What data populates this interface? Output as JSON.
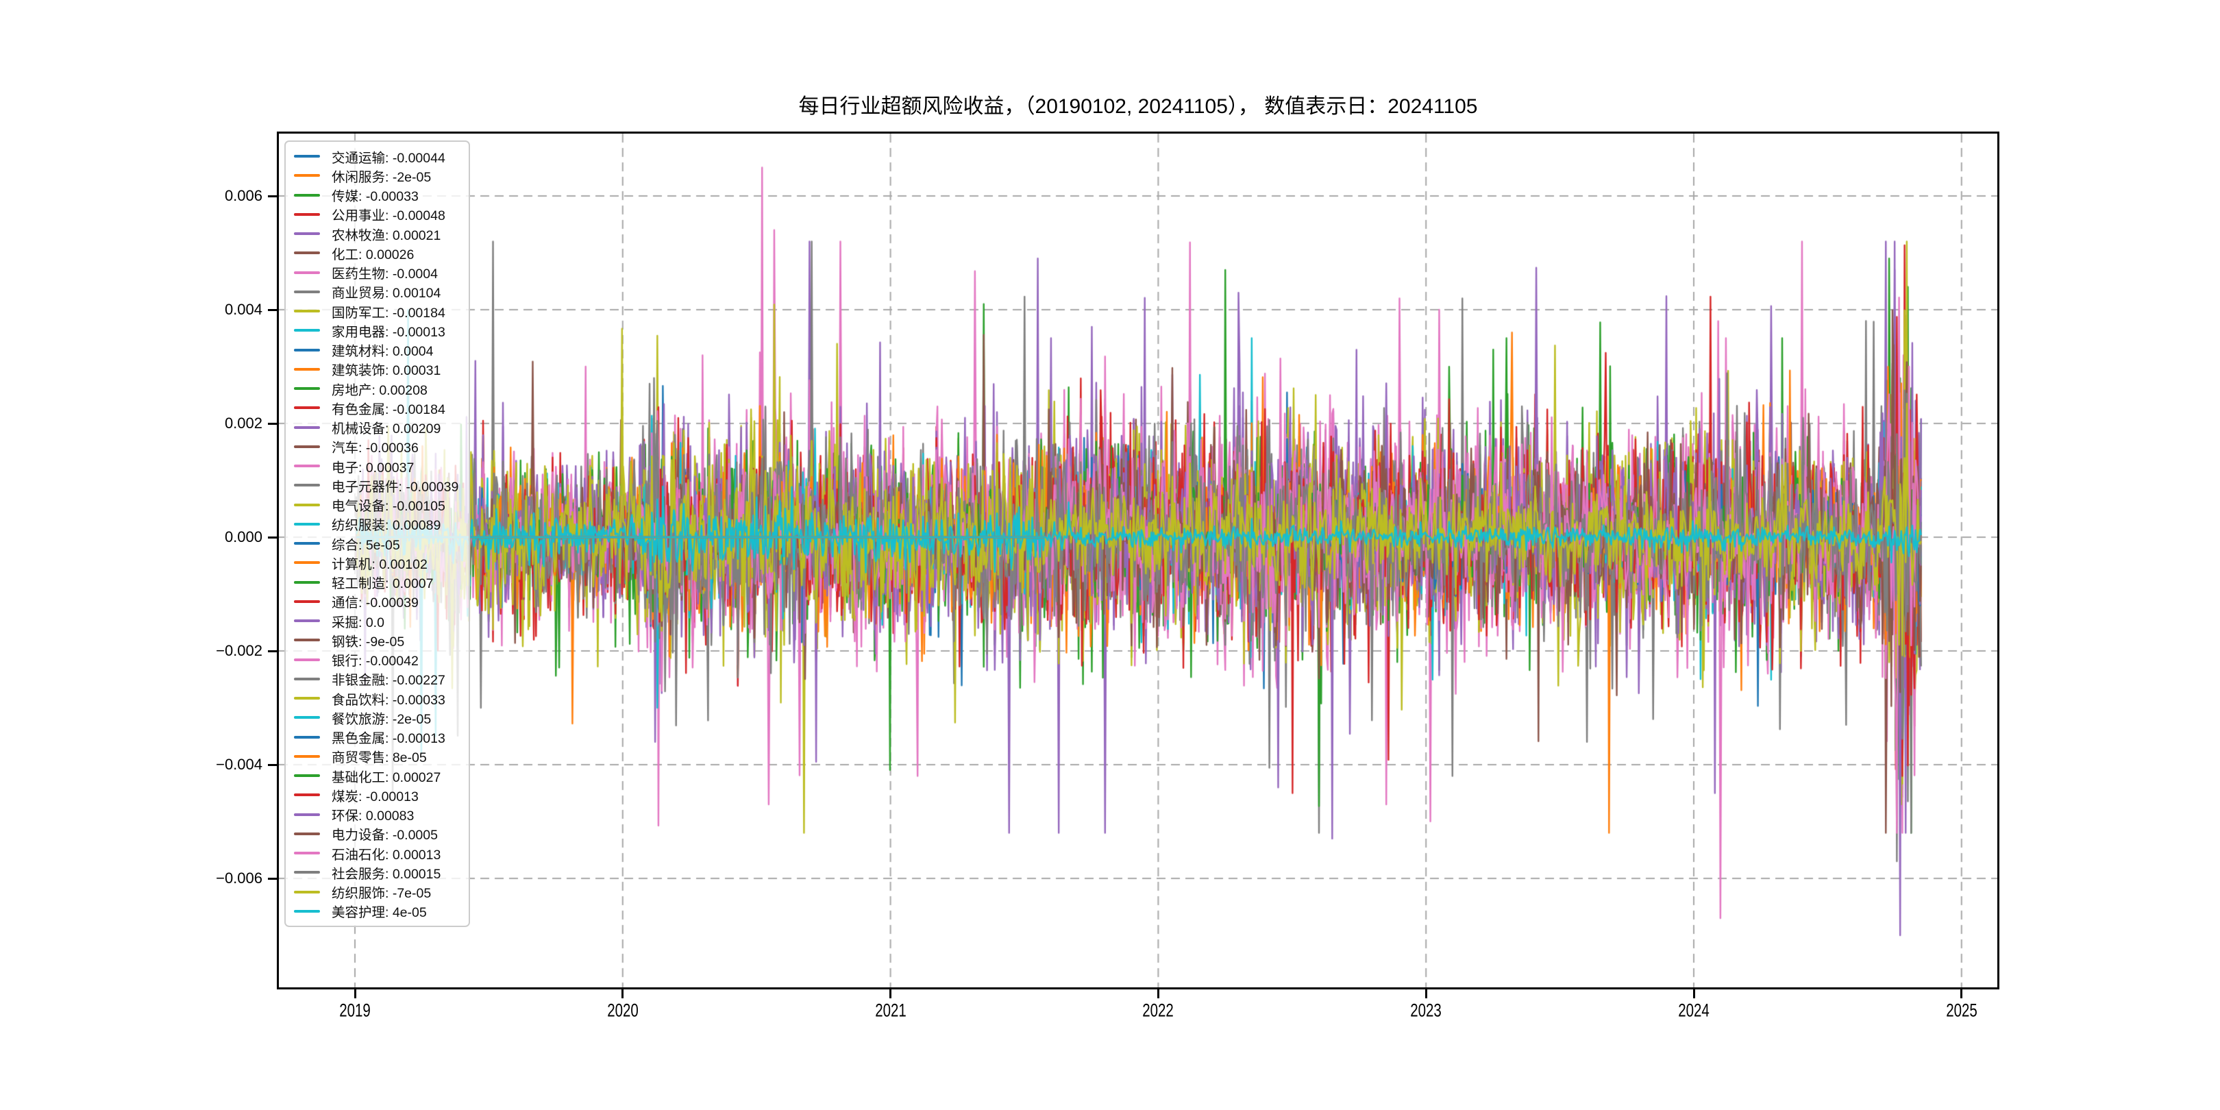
{
  "title": "每日行业超额风险收益，（20190102, 20241105），  数值表示日：20241105",
  "palette": [
    "#1f77b4",
    "#ff7f0e",
    "#2ca02c",
    "#d62728",
    "#9467bd",
    "#8c564b",
    "#e377c2",
    "#7f7f7f",
    "#bcbd22",
    "#17becf"
  ],
  "colors": {
    "grid": "#a8a8a8",
    "spine": "#000000",
    "legend_border": "#cccccc",
    "background": "#ffffff"
  },
  "chart_data": {
    "type": "line",
    "title": "每日行业超额风险收益，（20190102, 20241105），  数值表示日：20241105",
    "x_range_dates": [
      "20190102",
      "20241105"
    ],
    "value_date": "20241105",
    "x_ticks": [
      2019,
      2020,
      2021,
      2022,
      2023,
      2024,
      2025
    ],
    "x_tick_labels": [
      "2019",
      "2020",
      "2021",
      "2022",
      "2023",
      "2024",
      "2025"
    ],
    "y_ticks": [
      0.006,
      0.004,
      0.002,
      0.0,
      -0.002,
      -0.004,
      -0.006
    ],
    "y_tick_labels": [
      "0.006",
      "0.004",
      "0.002",
      "0.000",
      "−0.002",
      "−0.004",
      "−0.006"
    ],
    "ylim": [
      -0.0079,
      0.0071
    ],
    "grid": true,
    "legend_position": "upper left",
    "series": [
      {
        "name": "交通运输",
        "value": -0.00044,
        "value_label": "-0.00044",
        "color": "#1f77b4"
      },
      {
        "name": "休闲服务",
        "value": -2e-05,
        "value_label": "-2e-05",
        "color": "#ff7f0e"
      },
      {
        "name": "传媒",
        "value": -0.00033,
        "value_label": "-0.00033",
        "color": "#2ca02c"
      },
      {
        "name": "公用事业",
        "value": -0.00048,
        "value_label": "-0.00048",
        "color": "#d62728"
      },
      {
        "name": "农林牧渔",
        "value": 0.00021,
        "value_label": "0.00021",
        "color": "#9467bd"
      },
      {
        "name": "化工",
        "value": 0.00026,
        "value_label": "0.00026",
        "color": "#8c564b"
      },
      {
        "name": "医药生物",
        "value": -0.0004,
        "value_label": "-0.0004",
        "color": "#e377c2"
      },
      {
        "name": "商业贸易",
        "value": 0.00104,
        "value_label": "0.00104",
        "color": "#7f7f7f"
      },
      {
        "name": "国防军工",
        "value": -0.00184,
        "value_label": "-0.00184",
        "color": "#bcbd22"
      },
      {
        "name": "家用电器",
        "value": -0.00013,
        "value_label": "-0.00013",
        "color": "#17becf"
      },
      {
        "name": "建筑材料",
        "value": 0.0004,
        "value_label": "0.0004",
        "color": "#1f77b4"
      },
      {
        "name": "建筑装饰",
        "value": 0.00031,
        "value_label": "0.00031",
        "color": "#ff7f0e"
      },
      {
        "name": "房地产",
        "value": 0.00208,
        "value_label": "0.00208",
        "color": "#2ca02c"
      },
      {
        "name": "有色金属",
        "value": -0.00184,
        "value_label": "-0.00184",
        "color": "#d62728"
      },
      {
        "name": "机械设备",
        "value": 0.00209,
        "value_label": "0.00209",
        "color": "#9467bd"
      },
      {
        "name": "汽车",
        "value": -0.00036,
        "value_label": "-0.00036",
        "color": "#8c564b"
      },
      {
        "name": "电子",
        "value": 0.00037,
        "value_label": "0.00037",
        "color": "#e377c2"
      },
      {
        "name": "电子元器件",
        "value": -0.00039,
        "value_label": "-0.00039",
        "color": "#7f7f7f"
      },
      {
        "name": "电气设备",
        "value": -0.00105,
        "value_label": "-0.00105",
        "color": "#bcbd22"
      },
      {
        "name": "纺织服装",
        "value": 0.00089,
        "value_label": "0.00089",
        "color": "#17becf"
      },
      {
        "name": "综合",
        "value": 5e-05,
        "value_label": "5e-05",
        "color": "#1f77b4"
      },
      {
        "name": "计算机",
        "value": 0.00102,
        "value_label": "0.00102",
        "color": "#ff7f0e"
      },
      {
        "name": "轻工制造",
        "value": 0.0007,
        "value_label": "0.0007",
        "color": "#2ca02c"
      },
      {
        "name": "通信",
        "value": -0.00039,
        "value_label": "-0.00039",
        "color": "#d62728"
      },
      {
        "name": "采掘",
        "value": 0.0,
        "value_label": "0.0",
        "color": "#9467bd"
      },
      {
        "name": "钢铁",
        "value": -9e-05,
        "value_label": "-9e-05",
        "color": "#8c564b"
      },
      {
        "name": "银行",
        "value": -0.00042,
        "value_label": "-0.00042",
        "color": "#e377c2"
      },
      {
        "name": "非银金融",
        "value": -0.00227,
        "value_label": "-0.00227",
        "color": "#7f7f7f"
      },
      {
        "name": "食品饮料",
        "value": -0.00033,
        "value_label": "-0.00033",
        "color": "#bcbd22"
      },
      {
        "name": "餐饮旅游",
        "value": -2e-05,
        "value_label": "-2e-05",
        "color": "#17becf"
      },
      {
        "name": "黑色金属",
        "value": -0.00013,
        "value_label": "-0.00013",
        "color": "#1f77b4"
      },
      {
        "name": "商贸零售",
        "value": 8e-05,
        "value_label": "8e-05",
        "color": "#ff7f0e"
      },
      {
        "name": "基础化工",
        "value": 0.00027,
        "value_label": "0.00027",
        "color": "#2ca02c"
      },
      {
        "name": "煤炭",
        "value": -0.00013,
        "value_label": "-0.00013",
        "color": "#d62728"
      },
      {
        "name": "环保",
        "value": 0.00083,
        "value_label": "0.00083",
        "color": "#9467bd"
      },
      {
        "name": "电力设备",
        "value": -0.0005,
        "value_label": "-0.0005",
        "color": "#8c564b"
      },
      {
        "name": "石油石化",
        "value": 0.00013,
        "value_label": "0.00013",
        "color": "#e377c2"
      },
      {
        "name": "社会服务",
        "value": 0.00015,
        "value_label": "0.00015",
        "color": "#7f7f7f"
      },
      {
        "name": "纺织服饰",
        "value": -7e-05,
        "value_label": "-7e-05",
        "color": "#bcbd22"
      },
      {
        "name": "美容护理",
        "value": 4e-05,
        "value_label": "4e-05",
        "color": "#17becf"
      }
    ]
  },
  "render": {
    "seed": 20241105,
    "points": 1420,
    "t_start": 2019.005,
    "t_end": 2024.849,
    "fat_prob": 0.012,
    "envelope": [
      [
        2019.0,
        0.0006
      ],
      [
        2019.4,
        0.00072
      ],
      [
        2019.8,
        0.00062
      ],
      [
        2020.05,
        0.0007
      ],
      [
        2020.13,
        0.0012
      ],
      [
        2020.3,
        0.0008
      ],
      [
        2020.55,
        0.001
      ],
      [
        2020.9,
        0.00085
      ],
      [
        2021.3,
        0.00085
      ],
      [
        2021.7,
        0.001
      ],
      [
        2022.1,
        0.00095
      ],
      [
        2022.5,
        0.001
      ],
      [
        2022.9,
        0.00085
      ],
      [
        2023.3,
        0.00085
      ],
      [
        2023.8,
        0.0008
      ],
      [
        2024.1,
        0.00095
      ],
      [
        2024.45,
        0.0008
      ],
      [
        2024.68,
        0.0009
      ],
      [
        2024.755,
        0.002
      ],
      [
        2024.8,
        0.0023
      ],
      [
        2024.85,
        0.0011
      ]
    ],
    "scales": [
      0.5,
      0.55,
      0.9,
      0.6,
      1.0,
      0.6,
      1.2,
      0.85,
      1.1,
      0.75,
      0.7,
      0.7,
      1.0,
      1.05,
      1.15,
      0.75,
      1.1,
      1.05,
      1.0,
      0.7,
      0.3,
      0.95,
      0.65,
      0.85,
      0.9,
      0.7,
      0.8,
      0.9,
      0.85,
      0.3,
      0.6,
      0.6,
      0.6,
      0.95,
      0.85,
      0.9,
      0.9,
      0.7,
      0.55,
      0.12
    ],
    "new_series": [
      30,
      31,
      32,
      33,
      34,
      35,
      36,
      37,
      38,
      39
    ],
    "new_start": 2021.58,
    "events": [
      [
        2019.14,
        7,
        -0.0045
      ],
      [
        2019.2,
        9,
        0.004
      ],
      [
        2019.25,
        19,
        -0.0038
      ],
      [
        2019.3,
        9,
        -0.0035
      ],
      [
        2019.45,
        4,
        0.0031
      ],
      [
        2019.47,
        7,
        -0.003
      ],
      [
        2019.86,
        6,
        0.003
      ],
      [
        2020.1,
        7,
        0.0027
      ],
      [
        2020.115,
        17,
        0.0028
      ],
      [
        2020.12,
        14,
        -0.0036
      ],
      [
        2020.13,
        9,
        -0.003
      ],
      [
        2020.3,
        6,
        0.0032
      ],
      [
        2020.52,
        6,
        0.0065
      ],
      [
        2020.545,
        6,
        -0.0047
      ],
      [
        2020.565,
        6,
        0.0054
      ],
      [
        2020.8,
        8,
        0.0034
      ],
      [
        2021.1,
        6,
        -0.0042
      ],
      [
        2021.35,
        12,
        0.0041
      ],
      [
        2021.55,
        14,
        0.0049
      ],
      [
        2021.6,
        4,
        0.0035
      ],
      [
        2021.63,
        14,
        -0.0052
      ],
      [
        2021.75,
        24,
        0.0037
      ],
      [
        2021.8,
        14,
        -0.0052
      ],
      [
        2022.25,
        12,
        0.0047
      ],
      [
        2022.3,
        14,
        0.0043
      ],
      [
        2022.35,
        19,
        0.0035
      ],
      [
        2022.45,
        14,
        -0.0044
      ],
      [
        2022.5,
        33,
        -0.0045
      ],
      [
        2022.6,
        17,
        -0.0052
      ],
      [
        2022.65,
        14,
        -0.0053
      ],
      [
        2022.85,
        6,
        -0.0047
      ],
      [
        2022.9,
        16,
        0.0042
      ],
      [
        2023.05,
        6,
        0.004
      ],
      [
        2023.1,
        27,
        -0.0042
      ],
      [
        2023.25,
        22,
        0.0033
      ],
      [
        2023.3,
        2,
        0.0035
      ],
      [
        2023.32,
        21,
        0.0036
      ],
      [
        2023.6,
        7,
        -0.0036
      ],
      [
        2023.85,
        7,
        -0.0032
      ],
      [
        2024.08,
        14,
        -0.0045
      ],
      [
        2024.09,
        26,
        0.0038
      ],
      [
        2024.1,
        36,
        -0.0067
      ],
      [
        2024.12,
        16,
        0.0035
      ],
      [
        2024.33,
        12,
        0.0035
      ],
      [
        2024.57,
        17,
        -0.0033
      ],
      [
        2024.73,
        12,
        0.0049
      ],
      [
        2024.75,
        14,
        0.0047
      ],
      [
        2024.76,
        17,
        -0.0057
      ],
      [
        2024.77,
        34,
        -0.007
      ],
      [
        2024.775,
        28,
        -0.0047
      ],
      [
        2024.78,
        33,
        -0.0042
      ],
      [
        2024.785,
        16,
        0.0032
      ],
      [
        2024.79,
        14,
        -0.0052
      ],
      [
        2024.8,
        12,
        0.0044
      ],
      [
        2024.805,
        36,
        0.003
      ],
      [
        2024.81,
        5,
        -0.0035
      ],
      [
        2024.83,
        14,
        0.0024
      ]
    ]
  }
}
